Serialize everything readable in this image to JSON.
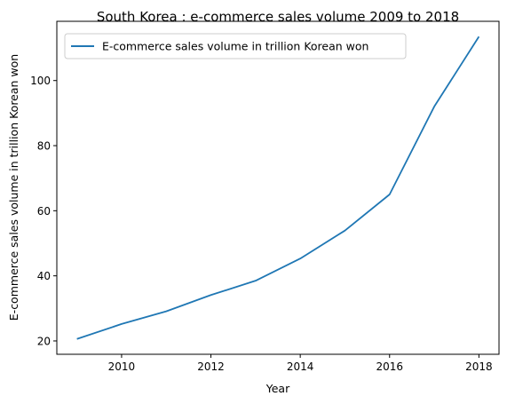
{
  "chart_data": {
    "type": "line",
    "title": "South Korea : e-commerce sales volume 2009 to 2018",
    "xlabel": "Year",
    "ylabel": "E-commerce sales volume in trillion Korean won",
    "x": [
      2009,
      2010,
      2011,
      2012,
      2013,
      2014,
      2015,
      2016,
      2017,
      2018
    ],
    "series": [
      {
        "name": "E-commerce sales volume in trillion Korean won",
        "values": [
          20.6,
          25.2,
          29.1,
          34.1,
          38.5,
          45.3,
          53.9,
          65.0,
          92.0,
          113.5
        ],
        "color": "#1f77b4"
      }
    ],
    "xlim": [
      2008.55,
      2018.45
    ],
    "ylim": [
      15.9,
      118.2
    ],
    "xticks": [
      2010,
      2012,
      2014,
      2016,
      2018
    ],
    "yticks": [
      20,
      40,
      60,
      80,
      100
    ],
    "grid": false,
    "legend_position": "top-left"
  }
}
